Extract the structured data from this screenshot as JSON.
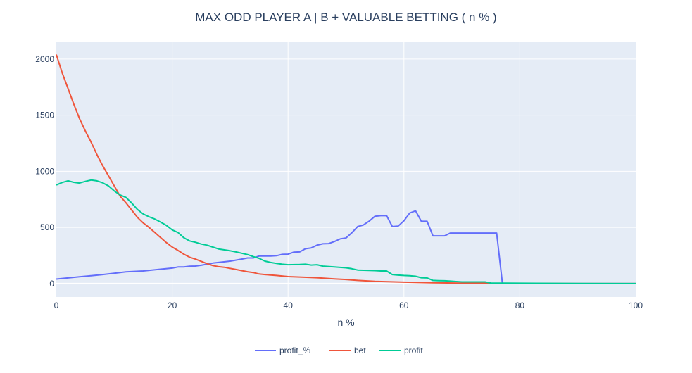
{
  "chart_data": {
    "type": "line",
    "title": "MAX ODD PLAYER A | B + VALUABLE BETTING ( n % )",
    "xlabel": "n %",
    "ylabel": "",
    "xlim": [
      0,
      100
    ],
    "ylim": [
      -120,
      2150
    ],
    "x_ticks": [
      0,
      20,
      40,
      60,
      80,
      100
    ],
    "y_ticks": [
      0,
      500,
      1000,
      1500,
      2000
    ],
    "grid": true,
    "legend_position": "bottom-center",
    "colors": {
      "plot_background": "#e5ecf6",
      "grid": "#ffffff",
      "text": "#2a3f5f"
    },
    "series": [
      {
        "name": "profit_%",
        "color": "#636efa",
        "points": [
          [
            0,
            40
          ],
          [
            2,
            50
          ],
          [
            4,
            60
          ],
          [
            6,
            70
          ],
          [
            8,
            80
          ],
          [
            10,
            92
          ],
          [
            12,
            104
          ],
          [
            15,
            112
          ],
          [
            18,
            128
          ],
          [
            20,
            138
          ],
          [
            21,
            148
          ],
          [
            22,
            148
          ],
          [
            23,
            154
          ],
          [
            24,
            156
          ],
          [
            25,
            163
          ],
          [
            26,
            172
          ],
          [
            27,
            182
          ],
          [
            28,
            188
          ],
          [
            30,
            200
          ],
          [
            32,
            218
          ],
          [
            33,
            228
          ],
          [
            34,
            228
          ],
          [
            35,
            245
          ],
          [
            36,
            245
          ],
          [
            37,
            245
          ],
          [
            38,
            248
          ],
          [
            39,
            260
          ],
          [
            40,
            262
          ],
          [
            41,
            280
          ],
          [
            42,
            282
          ],
          [
            43,
            310
          ],
          [
            44,
            318
          ],
          [
            45,
            342
          ],
          [
            46,
            354
          ],
          [
            47,
            356
          ],
          [
            48,
            374
          ],
          [
            49,
            398
          ],
          [
            50,
            406
          ],
          [
            51,
            452
          ],
          [
            52,
            508
          ],
          [
            53,
            522
          ],
          [
            54,
            556
          ],
          [
            55,
            600
          ],
          [
            56,
            605
          ],
          [
            57,
            606
          ],
          [
            58,
            508
          ],
          [
            59,
            512
          ],
          [
            60,
            560
          ],
          [
            61,
            628
          ],
          [
            62,
            648
          ],
          [
            63,
            555
          ],
          [
            64,
            555
          ],
          [
            65,
            425
          ],
          [
            67,
            425
          ],
          [
            68,
            450
          ],
          [
            69,
            450
          ],
          [
            72,
            450
          ],
          [
            76,
            450
          ],
          [
            77,
            0
          ],
          [
            80,
            0
          ],
          [
            90,
            0
          ],
          [
            100,
            0
          ]
        ]
      },
      {
        "name": "bet",
        "color": "#ef553b",
        "points": [
          [
            0,
            2040
          ],
          [
            1,
            1880
          ],
          [
            2,
            1740
          ],
          [
            3,
            1600
          ],
          [
            4,
            1470
          ],
          [
            5,
            1360
          ],
          [
            6,
            1260
          ],
          [
            7,
            1150
          ],
          [
            8,
            1050
          ],
          [
            9,
            960
          ],
          [
            10,
            870
          ],
          [
            11,
            780
          ],
          [
            12,
            720
          ],
          [
            13,
            655
          ],
          [
            14,
            590
          ],
          [
            15,
            540
          ],
          [
            16,
            500
          ],
          [
            17,
            455
          ],
          [
            18,
            410
          ],
          [
            19,
            365
          ],
          [
            20,
            325
          ],
          [
            21,
            295
          ],
          [
            22,
            262
          ],
          [
            23,
            235
          ],
          [
            24,
            218
          ],
          [
            25,
            198
          ],
          [
            26,
            178
          ],
          [
            27,
            160
          ],
          [
            28,
            150
          ],
          [
            29,
            145
          ],
          [
            30,
            135
          ],
          [
            31,
            125
          ],
          [
            32,
            115
          ],
          [
            33,
            105
          ],
          [
            34,
            98
          ],
          [
            35,
            85
          ],
          [
            36,
            80
          ],
          [
            38,
            72
          ],
          [
            40,
            62
          ],
          [
            42,
            58
          ],
          [
            45,
            52
          ],
          [
            48,
            42
          ],
          [
            50,
            36
          ],
          [
            52,
            28
          ],
          [
            55,
            20
          ],
          [
            60,
            12
          ],
          [
            65,
            7
          ],
          [
            70,
            4
          ],
          [
            75,
            2
          ],
          [
            80,
            1
          ],
          [
            90,
            0
          ],
          [
            100,
            0
          ]
        ]
      },
      {
        "name": "profit",
        "color": "#00cc96",
        "points": [
          [
            0,
            878
          ],
          [
            1,
            900
          ],
          [
            2,
            915
          ],
          [
            3,
            902
          ],
          [
            4,
            895
          ],
          [
            5,
            910
          ],
          [
            6,
            922
          ],
          [
            7,
            915
          ],
          [
            8,
            898
          ],
          [
            9,
            870
          ],
          [
            10,
            825
          ],
          [
            11,
            790
          ],
          [
            12,
            768
          ],
          [
            13,
            718
          ],
          [
            14,
            660
          ],
          [
            15,
            620
          ],
          [
            16,
            595
          ],
          [
            17,
            575
          ],
          [
            18,
            548
          ],
          [
            19,
            518
          ],
          [
            20,
            478
          ],
          [
            21,
            455
          ],
          [
            22,
            408
          ],
          [
            23,
            380
          ],
          [
            24,
            368
          ],
          [
            25,
            352
          ],
          [
            26,
            342
          ],
          [
            27,
            325
          ],
          [
            28,
            308
          ],
          [
            29,
            300
          ],
          [
            30,
            292
          ],
          [
            31,
            282
          ],
          [
            32,
            270
          ],
          [
            33,
            258
          ],
          [
            34,
            240
          ],
          [
            35,
            225
          ],
          [
            36,
            200
          ],
          [
            37,
            188
          ],
          [
            38,
            180
          ],
          [
            39,
            172
          ],
          [
            40,
            168
          ],
          [
            42,
            170
          ],
          [
            43,
            172
          ],
          [
            44,
            165
          ],
          [
            45,
            168
          ],
          [
            46,
            155
          ],
          [
            48,
            148
          ],
          [
            50,
            140
          ],
          [
            51,
            132
          ],
          [
            52,
            120
          ],
          [
            55,
            115
          ],
          [
            56,
            112
          ],
          [
            57,
            112
          ],
          [
            58,
            80
          ],
          [
            59,
            75
          ],
          [
            60,
            72
          ],
          [
            61,
            70
          ],
          [
            62,
            65
          ],
          [
            63,
            52
          ],
          [
            64,
            50
          ],
          [
            65,
            28
          ],
          [
            66,
            26
          ],
          [
            67,
            25
          ],
          [
            68,
            22
          ],
          [
            69,
            18
          ],
          [
            70,
            15
          ],
          [
            74,
            15
          ],
          [
            75,
            5
          ],
          [
            80,
            3
          ],
          [
            90,
            1
          ],
          [
            100,
            0
          ]
        ]
      }
    ]
  }
}
